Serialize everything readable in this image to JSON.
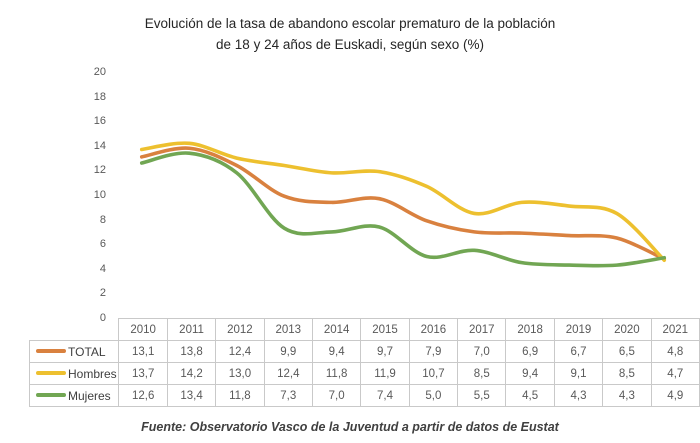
{
  "title_lines": [
    "Evolución de la tasa de abandono escolar prematuro de la población",
    "de 18 y 24 años de Euskadi, según sexo (%)"
  ],
  "footer": "Fuente: Observatorio Vasco de la Juventud a partir de datos de Eustat",
  "colors": {
    "total": "#d9813f",
    "hombres": "#edc02f",
    "mujeres": "#71a653",
    "grid_border": "#c9c9c9",
    "text_gray": "#595959"
  },
  "chart_data": {
    "type": "line",
    "title": "Evolución de la tasa de abandono escolar prematuro de la población de 18 y 24 años de Euskadi, según sexo (%)",
    "xlabel": "",
    "ylabel": "",
    "categories": [
      "2010",
      "2011",
      "2012",
      "2013",
      "2014",
      "2015",
      "2016",
      "2017",
      "2018",
      "2019",
      "2020",
      "2021"
    ],
    "series": [
      {
        "name": "TOTAL",
        "color": "#d9813f",
        "values": [
          13.1,
          13.8,
          12.4,
          9.9,
          9.4,
          9.7,
          7.9,
          7.0,
          6.9,
          6.7,
          6.5,
          4.8
        ]
      },
      {
        "name": "Hombres",
        "color": "#edc02f",
        "values": [
          13.7,
          14.2,
          13.0,
          12.4,
          11.8,
          11.9,
          10.7,
          8.5,
          9.4,
          9.1,
          8.5,
          4.7
        ]
      },
      {
        "name": "Mujeres",
        "color": "#71a653",
        "values": [
          12.6,
          13.4,
          11.8,
          7.3,
          7.0,
          7.4,
          5.0,
          5.5,
          4.5,
          4.3,
          4.3,
          4.9
        ]
      }
    ],
    "ylim": [
      0,
      20
    ],
    "yticks": [
      20,
      18,
      16,
      14,
      12,
      10,
      8,
      6,
      4,
      2,
      0
    ],
    "grid": false,
    "smooth_lines": true,
    "legend_position": "table-left",
    "data_table_shown": true,
    "decimal_separator": ","
  }
}
